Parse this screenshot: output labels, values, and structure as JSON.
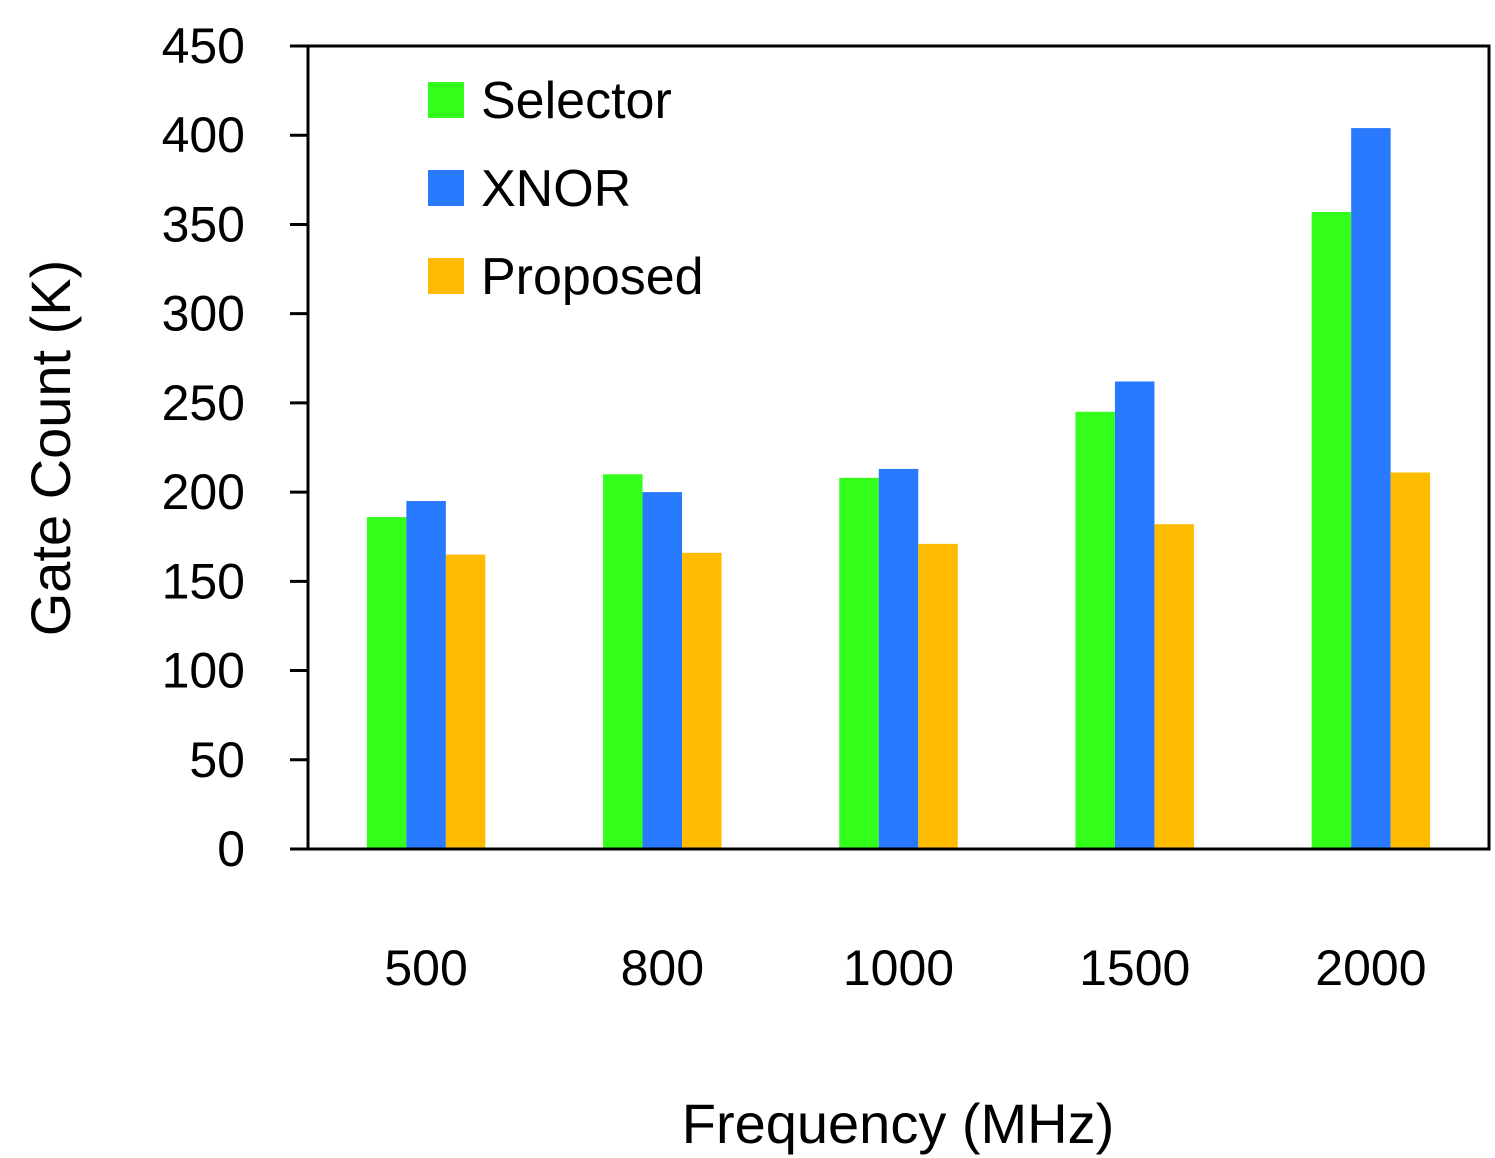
{
  "chart_data": {
    "type": "bar",
    "title": "",
    "xlabel": "Frequency (MHz)",
    "ylabel": "Gate Count (K)",
    "categories": [
      "500",
      "800",
      "1000",
      "1500",
      "2000"
    ],
    "series": [
      {
        "name": "Selector",
        "color": "#33ff1a",
        "values": [
          186,
          210,
          208,
          245,
          357
        ]
      },
      {
        "name": "XNOR",
        "color": "#2979ff",
        "values": [
          195,
          200,
          213,
          262,
          404
        ]
      },
      {
        "name": "Proposed",
        "color": "#ffbb00",
        "values": [
          165,
          166,
          171,
          182,
          211
        ]
      }
    ],
    "ylim": [
      0,
      450
    ],
    "yticks": [
      0,
      50,
      100,
      150,
      200,
      250,
      300,
      350,
      400,
      450
    ],
    "grid": false,
    "legend_position": "top-left"
  }
}
